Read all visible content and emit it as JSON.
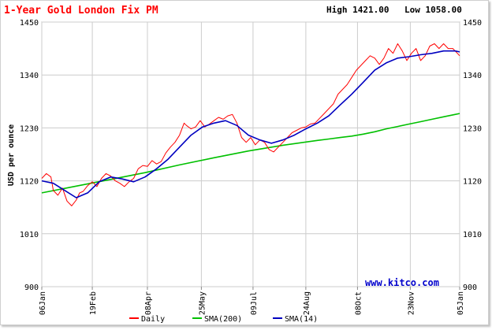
{
  "chart_data": {
    "type": "line",
    "title": "1-Year Gold London Fix PM",
    "high_label": "High 1421.00",
    "low_label": "Low 1058.00",
    "ylabel": "USD per ounce",
    "watermark": "www.kitco.com",
    "ylim": [
      900,
      1450
    ],
    "y_ticks": [
      900,
      1010,
      1120,
      1230,
      1340,
      1450
    ],
    "x_ticks": [
      {
        "label": "06Jan",
        "x": 0
      },
      {
        "label": "19Feb",
        "x": 44
      },
      {
        "label": "08Apr",
        "x": 92
      },
      {
        "label": "25May",
        "x": 139
      },
      {
        "label": "09Jul",
        "x": 184
      },
      {
        "label": "24Aug",
        "x": 230
      },
      {
        "label": "08Oct",
        "x": 275
      },
      {
        "label": "23Nov",
        "x": 321
      },
      {
        "label": "05Jan",
        "x": 364
      }
    ],
    "xlim": [
      0,
      364
    ],
    "series": [
      {
        "name": "Daily",
        "color": "#ff0000",
        "x": [
          0,
          4,
          8,
          10,
          14,
          18,
          22,
          26,
          30,
          33,
          36,
          40,
          44,
          48,
          52,
          56,
          60,
          64,
          68,
          72,
          76,
          80,
          84,
          88,
          92,
          96,
          100,
          104,
          108,
          112,
          116,
          120,
          124,
          126,
          130,
          134,
          138,
          142,
          146,
          150,
          154,
          158,
          162,
          166,
          170,
          174,
          178,
          182,
          186,
          190,
          194,
          198,
          202,
          206,
          210,
          214,
          218,
          222,
          226,
          230,
          234,
          238,
          242,
          246,
          250,
          254,
          258,
          262,
          266,
          270,
          274,
          278,
          282,
          286,
          290,
          294,
          298,
          302,
          306,
          310,
          314,
          318,
          322,
          326,
          330,
          334,
          338,
          342,
          346,
          350,
          354,
          358,
          362,
          364
        ],
        "values": [
          1125,
          1135,
          1128,
          1100,
          1090,
          1105,
          1078,
          1068,
          1080,
          1095,
          1098,
          1110,
          1118,
          1108,
          1125,
          1135,
          1130,
          1120,
          1115,
          1108,
          1118,
          1125,
          1145,
          1152,
          1150,
          1162,
          1155,
          1160,
          1178,
          1190,
          1200,
          1215,
          1240,
          1235,
          1228,
          1232,
          1245,
          1232,
          1238,
          1245,
          1252,
          1248,
          1255,
          1258,
          1240,
          1210,
          1200,
          1210,
          1195,
          1205,
          1200,
          1185,
          1180,
          1190,
          1200,
          1210,
          1220,
          1225,
          1230,
          1232,
          1238,
          1240,
          1250,
          1260,
          1270,
          1280,
          1300,
          1310,
          1320,
          1335,
          1350,
          1360,
          1370,
          1380,
          1375,
          1362,
          1375,
          1395,
          1385,
          1405,
          1390,
          1370,
          1385,
          1395,
          1370,
          1380,
          1400,
          1405,
          1395,
          1405,
          1395,
          1395,
          1385,
          1380
        ],
        "legend_label": "Daily"
      },
      {
        "name": "SMA(200)",
        "color": "#00c000",
        "x": [
          0,
          30,
          60,
          90,
          120,
          150,
          180,
          210,
          240,
          250,
          260,
          270,
          280,
          290,
          300,
          310,
          320,
          330,
          340,
          350,
          360,
          364
        ],
        "values": [
          1095,
          1109,
          1123,
          1137,
          1153,
          1168,
          1182,
          1194,
          1204,
          1207,
          1210,
          1213,
          1217,
          1222,
          1228,
          1233,
          1238,
          1243,
          1248,
          1253,
          1258,
          1260
        ],
        "legend_label": "SMA(200)"
      },
      {
        "name": "SMA(14)",
        "color": "#0000c0",
        "x": [
          0,
          10,
          20,
          30,
          40,
          50,
          60,
          70,
          80,
          90,
          100,
          110,
          120,
          130,
          140,
          150,
          160,
          170,
          180,
          190,
          200,
          210,
          220,
          230,
          240,
          250,
          260,
          270,
          280,
          290,
          300,
          310,
          320,
          330,
          340,
          350,
          360,
          364
        ],
        "values": [
          1120,
          1115,
          1100,
          1085,
          1095,
          1118,
          1128,
          1124,
          1118,
          1128,
          1145,
          1165,
          1190,
          1215,
          1232,
          1240,
          1245,
          1235,
          1215,
          1205,
          1198,
          1205,
          1215,
          1228,
          1240,
          1255,
          1278,
          1300,
          1325,
          1350,
          1365,
          1375,
          1378,
          1382,
          1385,
          1390,
          1390,
          1388
        ],
        "legend_label": "SMA(14)"
      }
    ],
    "grid": true,
    "legend_position": "bottom"
  }
}
